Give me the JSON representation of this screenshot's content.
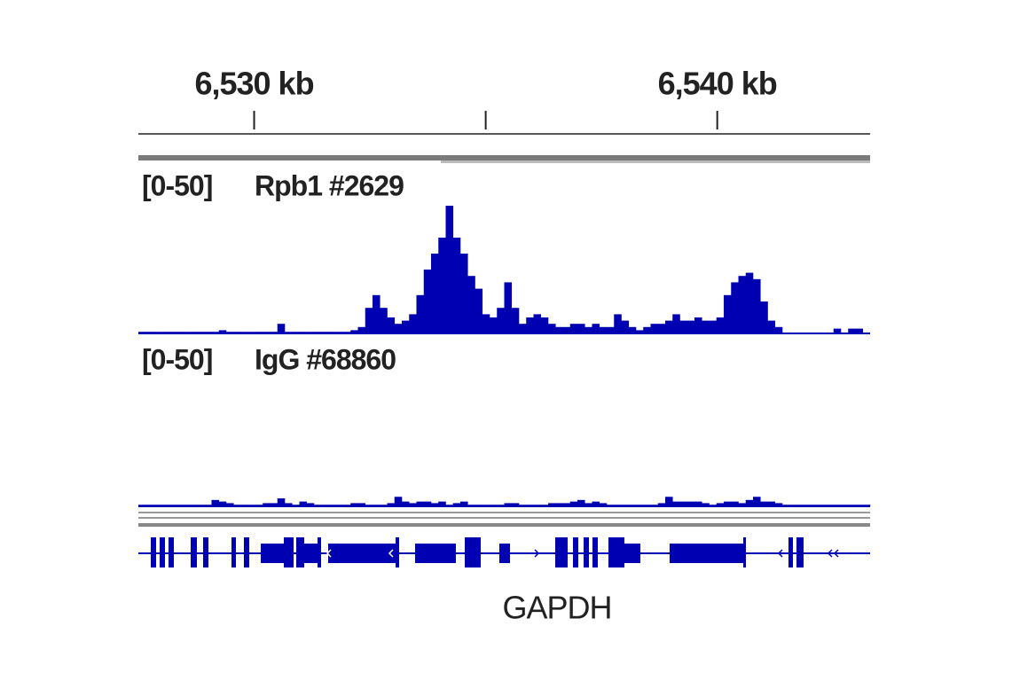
{
  "chart_data": {
    "type": "genome-track",
    "xlim": [
      6527.5,
      6543.3
    ],
    "xticks": [
      {
        "value": 6530,
        "label": "6,530 kb"
      },
      {
        "value": 6535,
        "label": null
      },
      {
        "value": 6540,
        "label": "6,540 kb"
      }
    ],
    "series": [
      {
        "name": "Rpb1 #2629",
        "range_label": "[0-50]",
        "ylim": [
          0,
          50
        ],
        "color": "#0000b3",
        "values": [
          0.5,
          0.5,
          0.5,
          0.5,
          0.5,
          0.5,
          0.5,
          0.5,
          0.5,
          0.5,
          0.5,
          1,
          0.5,
          0.5,
          0.5,
          0.5,
          0.5,
          0.5,
          0.5,
          3,
          0.5,
          0.5,
          0.5,
          0.5,
          0.5,
          0.5,
          0.5,
          0.5,
          0.5,
          1,
          2,
          8,
          12,
          8,
          5,
          3,
          4,
          6,
          12,
          20,
          25,
          30,
          40,
          30,
          25,
          18,
          14,
          6,
          5,
          8,
          16,
          8,
          3,
          5,
          6,
          5,
          3,
          2,
          2,
          3,
          3,
          2,
          3,
          2,
          2,
          6,
          4,
          2,
          1,
          2,
          3,
          3,
          4,
          6,
          4,
          4,
          5,
          4,
          4,
          5,
          12,
          16,
          18,
          19,
          17,
          10,
          4,
          2,
          0,
          0,
          0,
          0,
          0,
          0,
          0,
          1.5,
          0,
          1.5,
          1.5,
          0
        ]
      },
      {
        "name": "IgG #68860",
        "range_label": "[0-50]",
        "ylim": [
          0,
          50
        ],
        "color": "#0000b3",
        "values": [
          0.5,
          0.5,
          0.5,
          0.5,
          0.5,
          0.5,
          0.5,
          0.5,
          0.5,
          0.5,
          2,
          1.5,
          1,
          0.5,
          0.5,
          0.5,
          0.5,
          1,
          1,
          2.5,
          1,
          0.5,
          1.5,
          1,
          0.5,
          0.5,
          0.5,
          0.5,
          0.5,
          1,
          1,
          0.5,
          0.5,
          0.5,
          1,
          3,
          1.5,
          1,
          1.5,
          1.5,
          1,
          1.5,
          0.5,
          1,
          1.5,
          0.5,
          0.5,
          0.5,
          0.5,
          0.5,
          1,
          1,
          0.5,
          0.5,
          0.5,
          0.5,
          1,
          1,
          1,
          1.5,
          2,
          1,
          1.5,
          1,
          0.5,
          0.5,
          0.5,
          0.5,
          0.5,
          0.5,
          0.5,
          1,
          3,
          1.5,
          1.5,
          1.5,
          1.5,
          1,
          0.5,
          1,
          1.5,
          1.5,
          1,
          2,
          3,
          1.5,
          1.5,
          1,
          0.5,
          0.5,
          0.5,
          0.5,
          0.5,
          0.5,
          0.5,
          0.5,
          0.5,
          0.5,
          0.5,
          0.5
        ]
      }
    ],
    "gene": "GAPDH"
  }
}
